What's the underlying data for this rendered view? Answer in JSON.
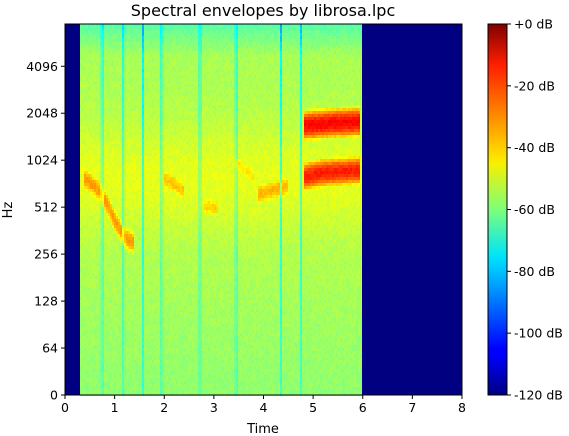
{
  "chart_data": {
    "type": "heatmap",
    "title": "Spectral envelopes by librosa.lpc",
    "xlabel": "Time",
    "ylabel": "Hz",
    "x_ticks": [
      "0",
      "1",
      "2",
      "3",
      "4",
      "5",
      "6",
      "7",
      "8"
    ],
    "y_ticks": [
      "0",
      "64",
      "128",
      "256",
      "512",
      "1024",
      "2048",
      "4096"
    ],
    "xlim": [
      0,
      8
    ],
    "y_scale": "log2 (symlog)",
    "colorbar": {
      "colormap": "jet",
      "range_db": [
        -120,
        0
      ],
      "ticks": [
        "+0 dB",
        "-20 dB",
        "-40 dB",
        "-60 dB",
        "-80 dB",
        "-100 dB",
        "-120 dB"
      ]
    },
    "signal_extent_s": [
      0.32,
      5.95
    ],
    "silence_level_db": -120,
    "broadband_level_db": [
      -55,
      -48
    ],
    "formant_tracks": [
      {
        "t": [
          0.4,
          0.7,
          1.0,
          1.2,
          1.4
        ],
        "hz": [
          780,
          650,
          420,
          330,
          300
        ],
        "db": -33
      },
      {
        "t": [
          2.0,
          2.2,
          2.4
        ],
        "hz": [
          780,
          720,
          650
        ],
        "db": -38
      },
      {
        "t": [
          2.8,
          3.1
        ],
        "hz": [
          520,
          510
        ],
        "db": -40
      },
      {
        "t": [
          3.4,
          3.6,
          3.8
        ],
        "hz": [
          1000,
          900,
          800
        ],
        "db": -42
      },
      {
        "t": [
          3.9,
          4.2,
          4.5
        ],
        "hz": [
          620,
          660,
          700
        ],
        "db": -36
      },
      {
        "t": [
          4.8,
          5.2,
          5.95
        ],
        "hz": [
          800,
          850,
          880
        ],
        "db": -18
      },
      {
        "t": [
          4.8,
          5.2,
          5.95
        ],
        "hz": [
          1700,
          1750,
          1800
        ],
        "db": -15
      }
    ],
    "dropout_times_s": [
      0.75,
      1.18,
      1.57,
      1.95,
      2.72,
      3.45,
      4.35,
      4.75
    ]
  }
}
